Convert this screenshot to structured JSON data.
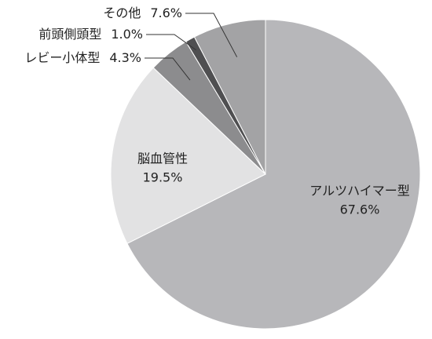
{
  "chart_data": {
    "type": "pie",
    "categories": [
      "アルツハイマー型",
      "脳血管性",
      "レビー小体型",
      "前頭側頭型",
      "その他"
    ],
    "values": [
      67.6,
      19.5,
      4.3,
      1.0,
      7.6
    ],
    "value_labels": [
      "67.6%",
      "19.5%",
      "4.3%",
      "1.0%",
      "7.6%"
    ],
    "colors": [
      "#b7b7ba",
      "#e2e2e3",
      "#8c8c8e",
      "#4f4f51",
      "#a3a3a5"
    ],
    "start_angle": 0,
    "direction": "clockwise"
  }
}
